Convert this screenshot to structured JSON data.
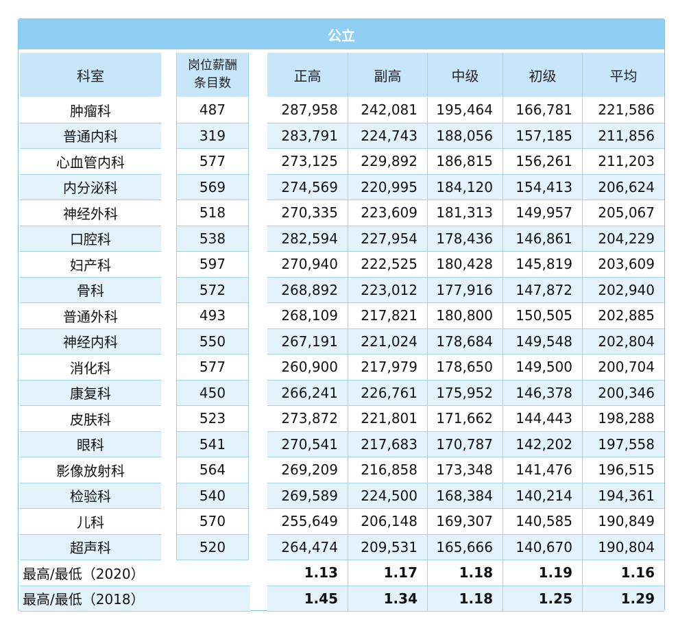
{
  "table": {
    "title": "公立",
    "headers": {
      "dept": "科室",
      "count_line1": "岗位薪酬",
      "count_line2": "条目数",
      "cols": [
        "正高",
        "副高",
        "中级",
        "初级",
        "平均"
      ]
    },
    "rows": [
      {
        "dept": "肿瘤科",
        "count": "487",
        "vals": [
          "287,958",
          "242,081",
          "195,464",
          "166,781",
          "221,586"
        ]
      },
      {
        "dept": "普通内科",
        "count": "319",
        "vals": [
          "283,791",
          "224,743",
          "188,056",
          "157,185",
          "211,856"
        ]
      },
      {
        "dept": "心血管内科",
        "count": "577",
        "vals": [
          "273,125",
          "229,892",
          "186,815",
          "156,261",
          "211,203"
        ]
      },
      {
        "dept": "内分泌科",
        "count": "569",
        "vals": [
          "274,569",
          "220,995",
          "184,120",
          "154,413",
          "206,624"
        ]
      },
      {
        "dept": "神经外科",
        "count": "518",
        "vals": [
          "270,335",
          "223,609",
          "181,313",
          "149,957",
          "205,067"
        ]
      },
      {
        "dept": "口腔科",
        "count": "538",
        "vals": [
          "282,594",
          "227,954",
          "178,436",
          "146,861",
          "204,229"
        ]
      },
      {
        "dept": "妇产科",
        "count": "597",
        "vals": [
          "270,940",
          "222,525",
          "180,428",
          "145,819",
          "203,609"
        ]
      },
      {
        "dept": "骨科",
        "count": "572",
        "vals": [
          "268,892",
          "223,012",
          "177,916",
          "147,872",
          "202,940"
        ]
      },
      {
        "dept": "普通外科",
        "count": "493",
        "vals": [
          "268,109",
          "217,821",
          "180,800",
          "150,505",
          "202,885"
        ]
      },
      {
        "dept": "神经内科",
        "count": "550",
        "vals": [
          "267,191",
          "221,024",
          "178,684",
          "149,548",
          "202,804"
        ]
      },
      {
        "dept": "消化科",
        "count": "577",
        "vals": [
          "260,900",
          "217,979",
          "178,650",
          "149,500",
          "200,704"
        ]
      },
      {
        "dept": "康复科",
        "count": "450",
        "vals": [
          "266,241",
          "226,761",
          "175,952",
          "146,378",
          "200,346"
        ]
      },
      {
        "dept": "皮肤科",
        "count": "523",
        "vals": [
          "273,872",
          "221,801",
          "171,662",
          "144,443",
          "198,288"
        ]
      },
      {
        "dept": "眼科",
        "count": "541",
        "vals": [
          "270,541",
          "217,683",
          "170,787",
          "142,202",
          "197,558"
        ]
      },
      {
        "dept": "影像放射科",
        "count": "564",
        "vals": [
          "269,209",
          "216,858",
          "173,348",
          "141,476",
          "196,515"
        ]
      },
      {
        "dept": "检验科",
        "count": "540",
        "vals": [
          "269,589",
          "224,500",
          "168,384",
          "140,214",
          "194,361"
        ]
      },
      {
        "dept": "儿科",
        "count": "570",
        "vals": [
          "255,649",
          "206,148",
          "169,307",
          "140,585",
          "190,849"
        ]
      },
      {
        "dept": "超声科",
        "count": "520",
        "vals": [
          "264,474",
          "209,531",
          "165,666",
          "140,670",
          "190,804"
        ]
      }
    ],
    "ratios": [
      {
        "label": "最高/最低（2020）",
        "vals": [
          "1.13",
          "1.17",
          "1.18",
          "1.19",
          "1.16"
        ]
      },
      {
        "label": "最高/最低（2018）",
        "vals": [
          "1.45",
          "1.34",
          "1.18",
          "1.25",
          "1.29"
        ]
      }
    ]
  },
  "colors": {
    "title_bar": "#8ecff3",
    "header_bg": "#c8e6fa",
    "row_alt_bg": "#e4f2fc",
    "grid_line": "#9fd3f1"
  }
}
